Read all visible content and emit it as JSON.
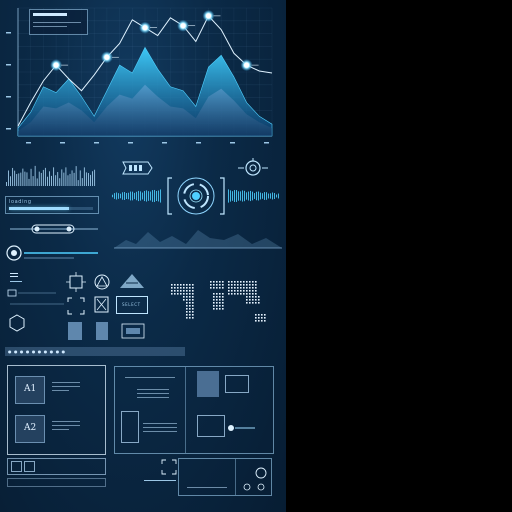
{
  "screen": {
    "background": "#0b2a47",
    "accent": "#2aa8e8",
    "highlight": "#9fe8ff"
  },
  "chart_data": {
    "type": "area",
    "title": "",
    "xlabel": "",
    "ylabel": "",
    "x": [
      0,
      1,
      2,
      3,
      4,
      5,
      6,
      7,
      8,
      9,
      10,
      11,
      12,
      13,
      14,
      15,
      16,
      17,
      18,
      19,
      20
    ],
    "series": [
      {
        "values": [
          8,
          24,
          50,
          44,
          58,
          40,
          20,
          46,
          72,
          64,
          90,
          68,
          50,
          46,
          30,
          70,
          82,
          60,
          34,
          20,
          12
        ]
      },
      {
        "values": [
          5,
          14,
          30,
          28,
          34,
          26,
          14,
          30,
          42,
          38,
          52,
          40,
          30,
          28,
          18,
          40,
          48,
          36,
          22,
          14,
          8
        ]
      }
    ],
    "line_series": {
      "values": [
        10,
        34,
        56,
        72,
        58,
        46,
        62,
        80,
        94,
        118,
        110,
        102,
        120,
        112,
        96,
        122,
        108,
        84,
        72,
        66,
        64
      ]
    },
    "markers": [
      3,
      7,
      10,
      13,
      15,
      18
    ],
    "ylim": [
      0,
      130
    ],
    "grid": true
  },
  "panels": {
    "info_box": {
      "title_icon": "menu-icon"
    },
    "progress": {
      "label": "loading",
      "fraction": 0.72
    },
    "search_bar": {
      "caption": "● ● ● ● ● ● ● ● ● ●"
    },
    "tiles": {
      "a1": "A1",
      "a2": "A2"
    },
    "control_panel": {
      "action_label": "SELECT"
    }
  },
  "icons": [
    "gear-icon",
    "radar-icon",
    "triangle-icon",
    "warning-icon",
    "crosshair-icon",
    "hexagon-icon",
    "battery-icon",
    "close-icon",
    "world-map-icon"
  ]
}
